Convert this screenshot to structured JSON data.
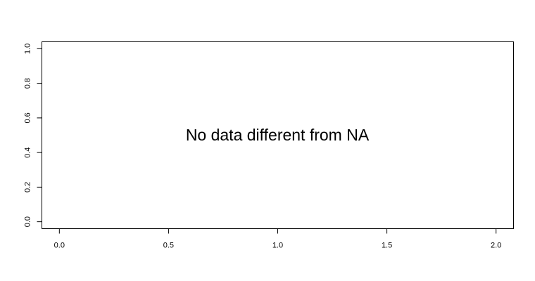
{
  "chart_data": {
    "type": "scatter",
    "title": "",
    "xlabel": "",
    "ylabel": "",
    "xlim": [
      -0.08,
      2.08
    ],
    "ylim": [
      -0.04,
      1.04
    ],
    "x_ticks": [
      {
        "value": 0.0,
        "label": "0.0"
      },
      {
        "value": 0.5,
        "label": "0.5"
      },
      {
        "value": 1.0,
        "label": "1.0"
      },
      {
        "value": 1.5,
        "label": "1.5"
      },
      {
        "value": 2.0,
        "label": "2.0"
      }
    ],
    "y_ticks": [
      {
        "value": 0.0,
        "label": "0.0"
      },
      {
        "value": 0.2,
        "label": "0.2"
      },
      {
        "value": 0.4,
        "label": "0.4"
      },
      {
        "value": 0.6,
        "label": "0.6"
      },
      {
        "value": 0.8,
        "label": "0.8"
      },
      {
        "value": 1.0,
        "label": "1.0"
      }
    ],
    "series": [],
    "grid": false,
    "annotation": "No data different from NA"
  }
}
